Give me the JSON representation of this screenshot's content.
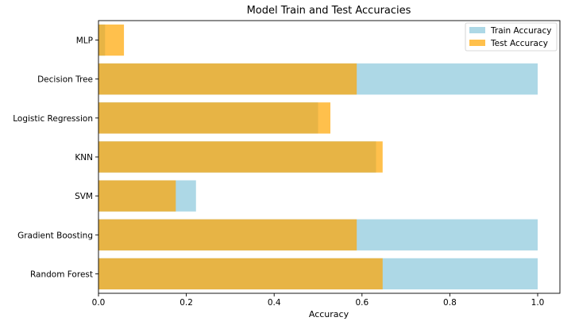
{
  "chart_data": {
    "type": "bar",
    "orientation": "horizontal",
    "title": "Model Train and Test Accuracies",
    "xlabel": "Accuracy",
    "ylabel": "",
    "categories": [
      "MLP",
      "Decision Tree",
      "Logistic Regression",
      "KNN",
      "SVM",
      "Gradient Boosting",
      "Random Forest"
    ],
    "series": [
      {
        "name": "Train Accuracy",
        "color": "#add8e6",
        "values": [
          0.015,
          1.0,
          0.5,
          0.632,
          0.222,
          1.0,
          1.0
        ]
      },
      {
        "name": "Test Accuracy",
        "color": "#ffa500",
        "opacity": 0.7,
        "values": [
          0.058,
          0.588,
          0.528,
          0.647,
          0.176,
          0.588,
          0.647
        ]
      }
    ],
    "xlim": [
      0,
      1.05
    ],
    "xticks": [
      0,
      0.2,
      0.4,
      0.6,
      0.8,
      1.0
    ],
    "xtick_labels": [
      "0.0",
      "0.2",
      "0.4",
      "0.6",
      "0.8",
      "1.0"
    ],
    "grid": false,
    "legend": "upper right"
  }
}
